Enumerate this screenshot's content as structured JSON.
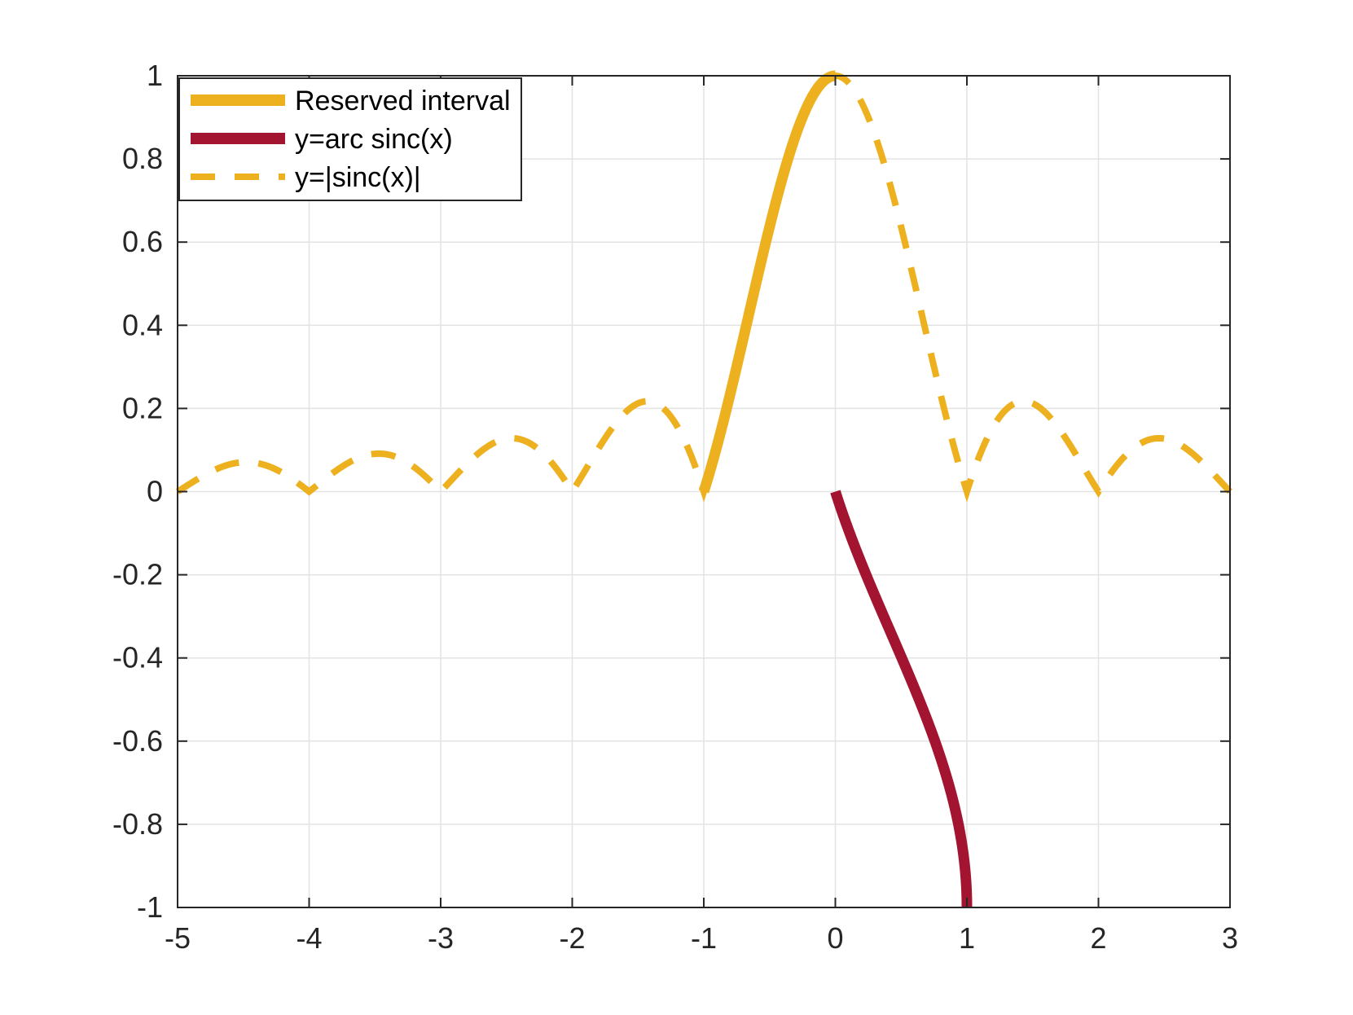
{
  "chart_data": {
    "type": "line",
    "title": "",
    "xlabel": "",
    "ylabel": "",
    "xlim": [
      -5,
      3
    ],
    "ylim": [
      -1,
      1
    ],
    "grid": true,
    "legend_position": "top-left",
    "x_ticks": [
      "-5",
      "-4",
      "-3",
      "-2",
      "-1",
      "0",
      "1",
      "2",
      "3"
    ],
    "y_ticks": [
      "-1",
      "-0.8",
      "-0.6",
      "-0.4",
      "-0.2",
      "0",
      "0.2",
      "0.4",
      "0.6",
      "0.8",
      "1"
    ],
    "series": [
      {
        "name": "Reserved interval",
        "style": "solid-thick",
        "color": "#EDB120",
        "description_function": "|sinc(x)| for x in [-1, 0]",
        "x": [
          -1.0,
          -0.9,
          -0.8,
          -0.7,
          -0.6,
          -0.5,
          -0.4,
          -0.3,
          -0.2,
          -0.1,
          0.0
        ],
        "y": [
          0.0,
          0.109,
          0.234,
          0.368,
          0.505,
          0.637,
          0.757,
          0.858,
          0.935,
          0.984,
          1.0
        ]
      },
      {
        "name": "y=arc sinc(x)",
        "style": "solid-thick",
        "color": "#A2142F",
        "x": [
          0.0,
          0.109,
          0.234,
          0.368,
          0.505,
          0.637,
          0.757,
          0.858,
          0.935,
          0.984,
          1.0
        ],
        "y": [
          -1.0,
          -0.9,
          -0.8,
          -0.7,
          -0.6,
          -0.5,
          -0.4,
          -0.3,
          -0.2,
          -0.1,
          0.0
        ]
      },
      {
        "name": "y=|sinc(x)|",
        "style": "dashed",
        "color": "#EDB120",
        "x_range": [
          -5,
          3
        ],
        "peaks": [
          {
            "x": -4.5,
            "y": 0.071
          },
          {
            "x": -3.5,
            "y": 0.091
          },
          {
            "x": -2.5,
            "y": 0.127
          },
          {
            "x": -1.5,
            "y": 0.212
          },
          {
            "x": 0.0,
            "y": 1.0
          },
          {
            "x": 1.5,
            "y": 0.212
          },
          {
            "x": 2.5,
            "y": 0.127
          }
        ],
        "zeros": [
          -5,
          -4,
          -3,
          -2,
          -1,
          1,
          2,
          3
        ]
      }
    ]
  }
}
